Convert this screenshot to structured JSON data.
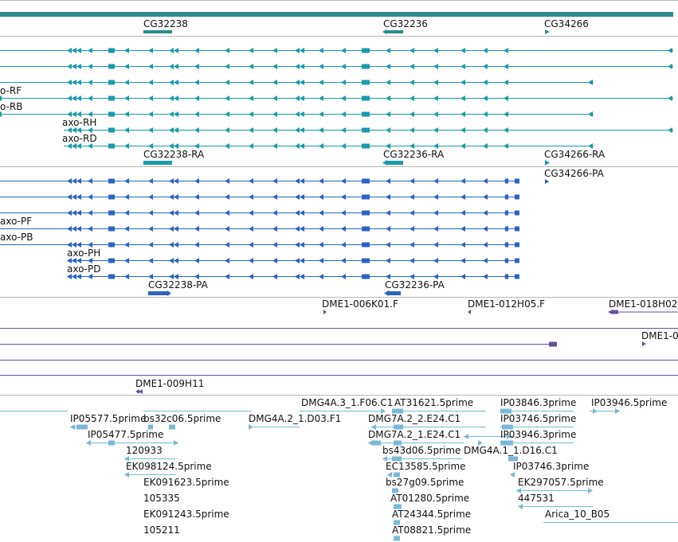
{
  "colors": {
    "gene": "#2e8a8a",
    "mrna": "#1a9aad",
    "protein": "#2a64c4",
    "clone": "#6a4f9e",
    "est": "#7ab8d8",
    "divider": "#b8b8b8"
  },
  "gene_track": {
    "labels": [
      "CG32238",
      "CG32236",
      "CG34266"
    ]
  },
  "mrna_track": {
    "transcripts": [
      "o-RF",
      "o-RB",
      "axo-RH",
      "axo-RD"
    ],
    "features": [
      "CG32238-RA",
      "CG32236-RA",
      "CG34266-RA",
      "CG34266-PA"
    ]
  },
  "protein_track": {
    "transcripts": [
      "axo-PF",
      "axo-PB",
      "axo-PH",
      "axo-PD"
    ],
    "features": [
      "CG32238-PA",
      "CG32236-PA"
    ]
  },
  "clone_track": {
    "labels": [
      "DME1-006K01.F",
      "DME1-012H05.F",
      "DME1-018H02",
      "DME1-0",
      "DME1-009H11"
    ]
  },
  "est_track": {
    "labels": [
      "DMG4A.3_1.F06.C1",
      "AT31621.5prime",
      "IP03846.3prime",
      "IP03946.5prime",
      "IP05577.5prime",
      "bs32c06.5prime",
      "DMG4A.2_1.D03.F1",
      "DMG7A.2_2.E24.C1",
      "IP03746.5prime",
      "IP05477.5prime",
      "DMG7A.2_1.E24.C1",
      "IP03946.3prime",
      "120933",
      "bs43d06.5prime",
      "DMG4A.1_1.D16.C1",
      "EK098124.5prime",
      "EC13585.5prime",
      "IP03746.3prime",
      "EK091623.5prime",
      "bs27g09.5prime",
      "EK297057.5prime",
      "105335",
      "AT01280.5prime",
      "447531",
      "EK091243.5prime",
      "AT24344.5prime",
      "Arica_10_B05",
      "105211",
      "AT08821.5prime"
    ]
  }
}
